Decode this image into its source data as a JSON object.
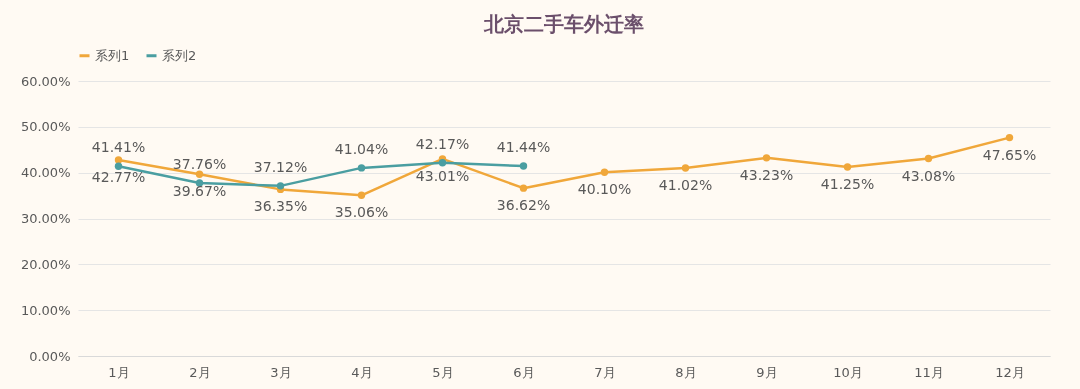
{
  "chart_data": {
    "type": "line",
    "title": "北京二手车外迁率",
    "categories": [
      "1月",
      "2月",
      "3月",
      "4月",
      "5月",
      "6月",
      "7月",
      "8月",
      "9月",
      "10月",
      "11月",
      "12月"
    ],
    "series": [
      {
        "name": "系列1",
        "color": "#f0a73a",
        "values": [
          42.77,
          39.67,
          36.35,
          35.06,
          43.01,
          36.62,
          40.1,
          41.02,
          43.23,
          41.25,
          43.08,
          47.65
        ],
        "value_labels": [
          "42.77%",
          "39.67%",
          "36.35%",
          "35.06%",
          "43.01%",
          "36.62%",
          "40.10%",
          "41.02%",
          "43.23%",
          "41.25%",
          "43.08%",
          "47.65%"
        ]
      },
      {
        "name": "系列2",
        "color": "#4a9ea1",
        "values": [
          41.41,
          37.76,
          37.12,
          41.04,
          42.17,
          41.44,
          null,
          null,
          null,
          null,
          null,
          null
        ],
        "value_labels": [
          "41.41%",
          "37.76%",
          "37.12%",
          "41.04%",
          "42.17%",
          "41.44%",
          null,
          null,
          null,
          null,
          null,
          null
        ]
      }
    ],
    "ylim": [
      0,
      60
    ],
    "yticks": [
      {
        "value": 0,
        "label": "0.00%"
      },
      {
        "value": 10,
        "label": "10.00%"
      },
      {
        "value": 20,
        "label": "20.00%"
      },
      {
        "value": 30,
        "label": "30.00%"
      },
      {
        "value": 40,
        "label": "40.00%"
      },
      {
        "value": 50,
        "label": "50.00%"
      },
      {
        "value": 60,
        "label": "60.00%"
      }
    ],
    "grid": "y",
    "legend": "top",
    "marker": "circle",
    "line_style": "solid"
  }
}
